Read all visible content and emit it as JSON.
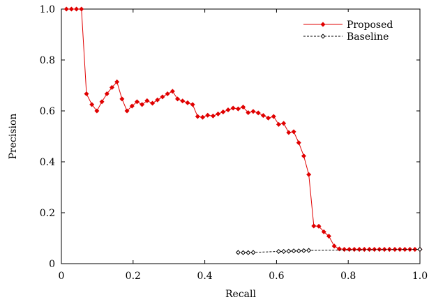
{
  "chart_data": {
    "type": "line",
    "title": "",
    "xlabel": "Recall",
    "ylabel": "Precision",
    "xlim": [
      0,
      1
    ],
    "ylim": [
      0,
      1
    ],
    "xticks": [
      "0",
      "0.2",
      "0.4",
      "0.6",
      "0.8",
      "1.0"
    ],
    "yticks": [
      "0",
      "0.2",
      "0.4",
      "0.6",
      "0.8",
      "1.0"
    ],
    "grid": false,
    "legend_position": "top-right",
    "series": [
      {
        "name": "Proposed",
        "color": "#e00000",
        "line_style": "solid",
        "marker": "filled-diamond",
        "x": [
          0.014,
          0.028,
          0.042,
          0.056,
          0.07,
          0.085,
          0.099,
          0.113,
          0.127,
          0.141,
          0.155,
          0.169,
          0.183,
          0.197,
          0.211,
          0.225,
          0.239,
          0.254,
          0.268,
          0.282,
          0.296,
          0.31,
          0.324,
          0.338,
          0.352,
          0.366,
          0.38,
          0.394,
          0.408,
          0.423,
          0.437,
          0.451,
          0.465,
          0.479,
          0.493,
          0.507,
          0.521,
          0.535,
          0.549,
          0.563,
          0.577,
          0.592,
          0.606,
          0.62,
          0.634,
          0.648,
          0.662,
          0.676,
          0.69,
          0.704,
          0.718,
          0.732,
          0.746,
          0.761,
          0.775,
          0.789,
          0.803,
          0.817,
          0.831,
          0.845,
          0.859,
          0.873,
          0.887,
          0.901,
          0.915,
          0.93,
          0.944,
          0.958,
          0.972,
          0.986,
          1.0
        ],
        "y": [
          1.0,
          1.0,
          1.0,
          1.0,
          0.667,
          0.625,
          0.6,
          0.636,
          0.667,
          0.692,
          0.714,
          0.647,
          0.6,
          0.619,
          0.636,
          0.625,
          0.64,
          0.63,
          0.643,
          0.655,
          0.667,
          0.677,
          0.647,
          0.639,
          0.632,
          0.625,
          0.578,
          0.575,
          0.583,
          0.58,
          0.588,
          0.596,
          0.604,
          0.611,
          0.608,
          0.615,
          0.593,
          0.598,
          0.592,
          0.582,
          0.572,
          0.578,
          0.547,
          0.551,
          0.515,
          0.518,
          0.475,
          0.423,
          0.35,
          0.148,
          0.147,
          0.125,
          0.108,
          0.069,
          0.058,
          0.056,
          0.056,
          0.056,
          0.056,
          0.056,
          0.056,
          0.056,
          0.056,
          0.056,
          0.056,
          0.056,
          0.056,
          0.056,
          0.056,
          0.056,
          0.056
        ]
      },
      {
        "name": "Baseline",
        "color": "#000000",
        "line_style": "dashed",
        "marker": "hollow-diamond",
        "x": [
          0.493,
          0.507,
          0.521,
          0.535,
          0.606,
          0.62,
          0.634,
          0.648,
          0.662,
          0.676,
          0.69,
          1.0
        ],
        "y": [
          0.044,
          0.043,
          0.043,
          0.044,
          0.048,
          0.048,
          0.049,
          0.05,
          0.05,
          0.051,
          0.052,
          0.056
        ]
      }
    ]
  }
}
